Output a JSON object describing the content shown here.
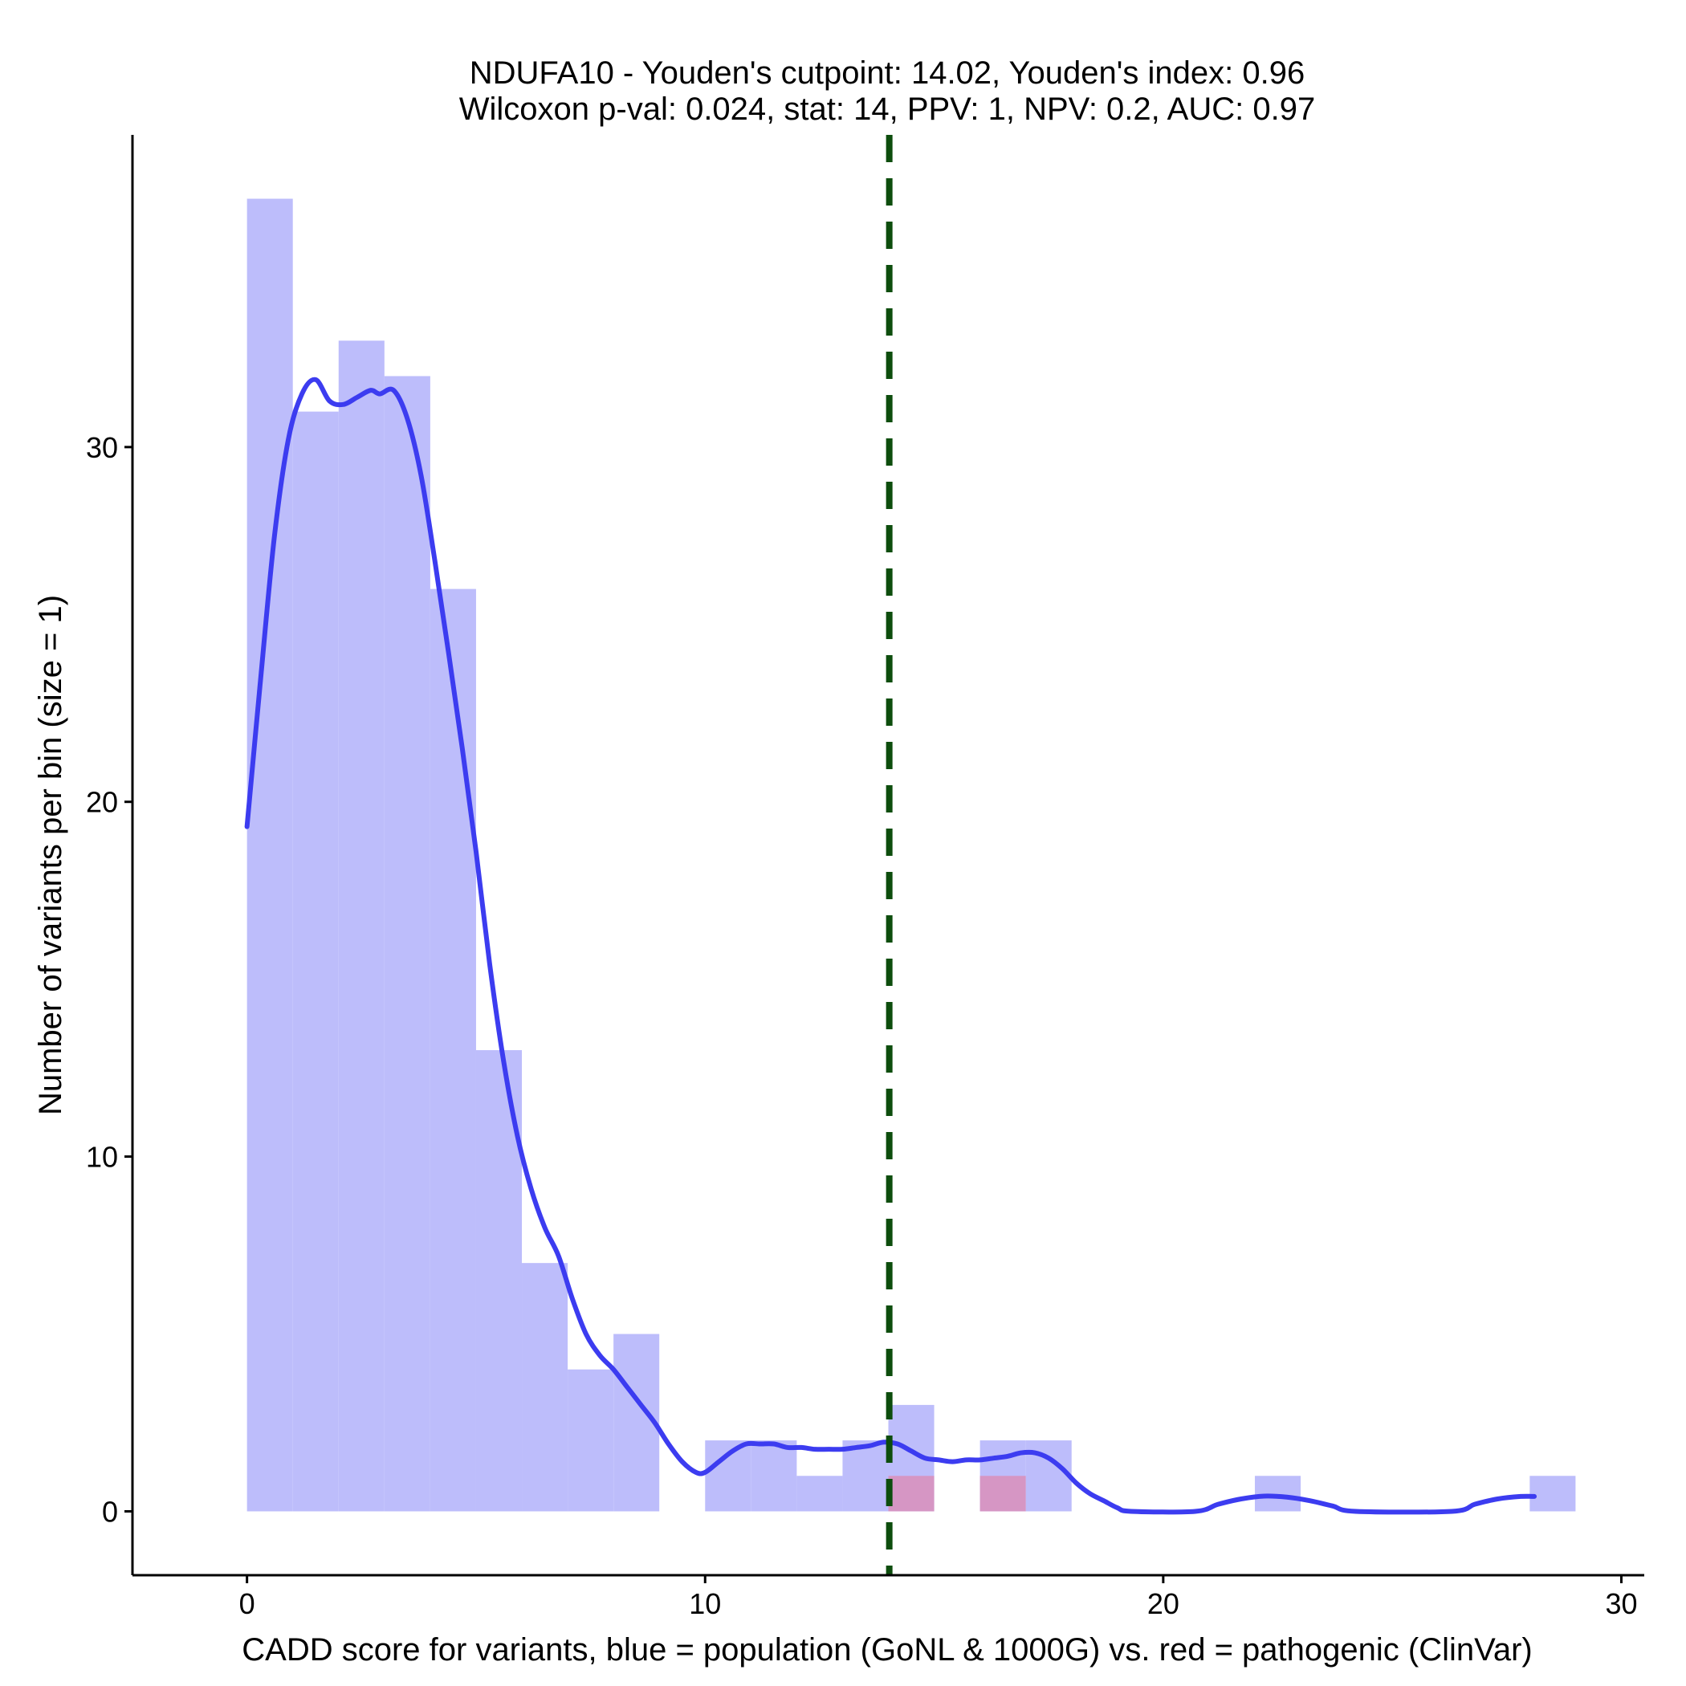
{
  "chart_data": {
    "type": "bar",
    "title_line1": "NDUFA10 - Youden's cutpoint: 14.02, Youden's index: 0.96",
    "title_line2": "Wilcoxon p-val: 0.024, stat: 14, PPV: 1, NPV: 0.2, AUC: 0.97",
    "xlabel": "CADD score for variants, blue = population (GoNL & 1000G) vs. red = pathogenic (ClinVar)",
    "ylabel": "Number of variants per bin (size = 1)",
    "xlim": [
      -2.5,
      30.5
    ],
    "ylim": [
      -1.8,
      38.8
    ],
    "xticks": [
      0,
      10,
      20,
      30
    ],
    "yticks": [
      0,
      10,
      20,
      30
    ],
    "bin_width": 1,
    "series": [
      {
        "color": "#bdbdfb",
        "bins": [
          {
            "x": 0,
            "count": 37
          },
          {
            "x": 1,
            "count": 31
          },
          {
            "x": 2,
            "count": 33
          },
          {
            "x": 3,
            "count": 32
          },
          {
            "x": 4,
            "count": 26
          },
          {
            "x": 5,
            "count": 13
          },
          {
            "x": 6,
            "count": 7
          },
          {
            "x": 7,
            "count": 4
          },
          {
            "x": 8,
            "count": 5
          },
          {
            "x": 10,
            "count": 2
          },
          {
            "x": 11,
            "count": 2
          },
          {
            "x": 12,
            "count": 1
          },
          {
            "x": 13,
            "count": 2
          },
          {
            "x": 14,
            "count": 3
          },
          {
            "x": 16,
            "count": 2
          },
          {
            "x": 17,
            "count": 2
          },
          {
            "x": 22,
            "count": 1
          },
          {
            "x": 28,
            "count": 1
          }
        ]
      },
      {
        "color": "#d696c4",
        "bins": [
          {
            "x": 14,
            "count": 1
          },
          {
            "x": 16,
            "count": 1
          }
        ]
      }
    ],
    "density": {
      "color": "#3c3cf0",
      "points": [
        [
          0,
          19.3
        ],
        [
          0.3,
          23.5
        ],
        [
          0.6,
          27.5
        ],
        [
          0.9,
          30.2
        ],
        [
          1.2,
          31.5
        ],
        [
          1.5,
          31.9
        ],
        [
          1.8,
          31.3
        ],
        [
          2.1,
          31.2
        ],
        [
          2.4,
          31.4
        ],
        [
          2.7,
          31.6
        ],
        [
          2.9,
          31.5
        ],
        [
          3.2,
          31.6
        ],
        [
          3.5,
          30.8
        ],
        [
          3.8,
          29.2
        ],
        [
          4.1,
          26.8
        ],
        [
          4.4,
          24.2
        ],
        [
          4.7,
          21.5
        ],
        [
          5.0,
          18.6
        ],
        [
          5.3,
          15.4
        ],
        [
          5.6,
          12.7
        ],
        [
          5.9,
          10.6
        ],
        [
          6.2,
          9.1
        ],
        [
          6.5,
          8.0
        ],
        [
          6.8,
          7.2
        ],
        [
          7.1,
          6.0
        ],
        [
          7.4,
          5.0
        ],
        [
          7.7,
          4.4
        ],
        [
          8.0,
          4.0
        ],
        [
          8.3,
          3.5
        ],
        [
          8.6,
          3.0
        ],
        [
          8.9,
          2.5
        ],
        [
          9.2,
          1.9
        ],
        [
          9.5,
          1.4
        ],
        [
          9.8,
          1.1
        ],
        [
          10.0,
          1.1
        ],
        [
          10.3,
          1.4
        ],
        [
          10.6,
          1.7
        ],
        [
          10.9,
          1.9
        ],
        [
          11.2,
          1.9
        ],
        [
          11.5,
          1.9
        ],
        [
          11.8,
          1.8
        ],
        [
          12.1,
          1.8
        ],
        [
          12.4,
          1.75
        ],
        [
          12.7,
          1.75
        ],
        [
          13.0,
          1.75
        ],
        [
          13.3,
          1.8
        ],
        [
          13.6,
          1.85
        ],
        [
          13.9,
          1.95
        ],
        [
          14.2,
          1.9
        ],
        [
          14.5,
          1.7
        ],
        [
          14.8,
          1.5
        ],
        [
          15.1,
          1.45
        ],
        [
          15.4,
          1.4
        ],
        [
          15.7,
          1.45
        ],
        [
          16.0,
          1.45
        ],
        [
          16.3,
          1.5
        ],
        [
          16.6,
          1.55
        ],
        [
          16.9,
          1.65
        ],
        [
          17.2,
          1.65
        ],
        [
          17.5,
          1.5
        ],
        [
          17.8,
          1.2
        ],
        [
          18.1,
          0.8
        ],
        [
          18.4,
          0.5
        ],
        [
          18.7,
          0.3
        ],
        [
          19.0,
          0.1
        ],
        [
          19.3,
          0.0
        ],
        [
          20.7,
          0.0
        ],
        [
          21.2,
          0.2
        ],
        [
          21.7,
          0.35
        ],
        [
          22.2,
          0.43
        ],
        [
          22.7,
          0.4
        ],
        [
          23.2,
          0.3
        ],
        [
          23.7,
          0.15
        ],
        [
          24.2,
          0.0
        ],
        [
          26.3,
          0.0
        ],
        [
          26.8,
          0.2
        ],
        [
          27.3,
          0.35
        ],
        [
          27.8,
          0.42
        ],
        [
          28.1,
          0.42
        ]
      ]
    },
    "cutpoint": {
      "x": 14.02,
      "color": "#0d4d0d"
    }
  }
}
